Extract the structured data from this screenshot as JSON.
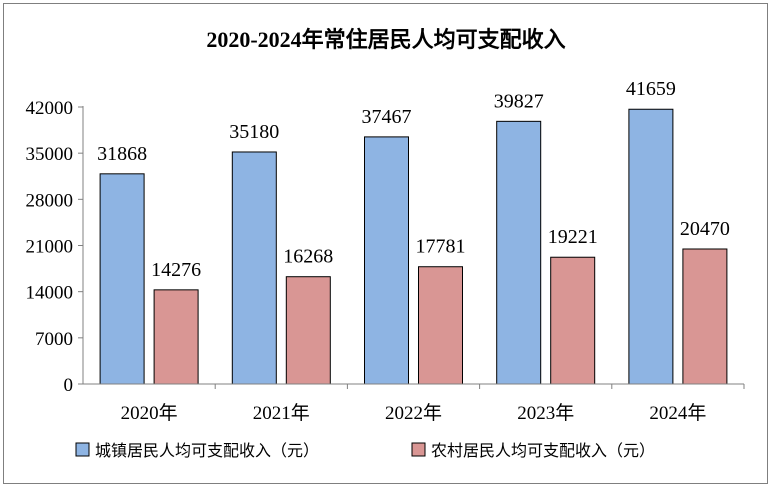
{
  "chart_data": {
    "type": "bar",
    "title": "2020-2024年常住居民人均可支配收入",
    "categories": [
      "2020年",
      "2021年",
      "2022年",
      "2023年",
      "2024年"
    ],
    "series": [
      {
        "name": "城镇居民人均可支配收入（元）",
        "values": [
          31868,
          35180,
          37467,
          39827,
          41659
        ],
        "color": "#8eb4e3"
      },
      {
        "name": "农村居民人均可支配收入（元）",
        "values": [
          14276,
          16268,
          17781,
          19221,
          20470
        ],
        "color": "#d99694"
      }
    ],
    "ylim": [
      0,
      42000
    ],
    "yticks": [
      "0",
      "7000",
      "14000",
      "21000",
      "28000",
      "35000",
      "42000"
    ],
    "xlabel": "",
    "ylabel": "",
    "grid": false,
    "legend_position": "bottom"
  }
}
